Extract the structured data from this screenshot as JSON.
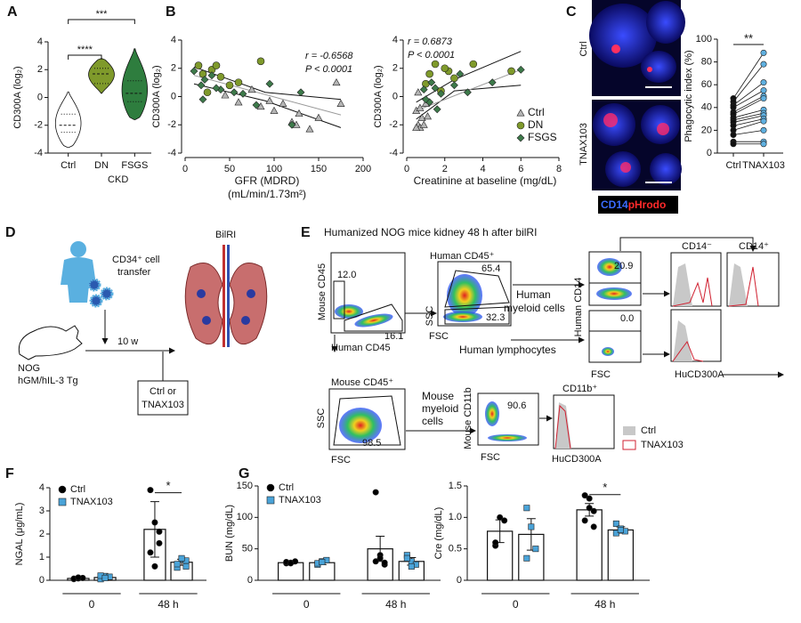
{
  "figure": {
    "panel_labels": [
      "A",
      "B",
      "C",
      "D",
      "E",
      "F",
      "G"
    ],
    "C": {
      "row_labels": [
        "Ctrl",
        "TNAX103"
      ],
      "stain": [
        "CD14",
        "pHrodo"
      ]
    },
    "D": {
      "cell_transfer": [
        "CD34⁺ cell",
        "transfer"
      ],
      "duration": "10 w",
      "mouse": [
        "NOG",
        "hGM/hIL-3 Tg"
      ],
      "procedure": "BilRI",
      "treatment": [
        "Ctrl or",
        "TNAX103"
      ]
    },
    "E": {
      "title": "Humanized NOG mice kidney 48 h after bilRI",
      "plot1": {
        "ylabel": "Mouse CD45",
        "xlabel": "Human CD45",
        "gates": [
          "12.0",
          "16.1"
        ]
      },
      "plot2": {
        "title": "Human CD45⁺",
        "ylabel": "SSC",
        "xlabel": "FSC",
        "gates": [
          "65.4",
          "32.3"
        ]
      },
      "myeloid": [
        "Human",
        "myeloid cells"
      ],
      "lymphocytes": "Human lymphocytes",
      "plot3": {
        "ylabel": "Human CD14",
        "xlabel": "FSC",
        "gates": [
          "20.9",
          "0.0"
        ]
      },
      "histograms": {
        "headers": [
          "CD14⁻",
          "CD14⁺"
        ],
        "xlabel": "HuCD300A"
      },
      "plot4": {
        "title": "Mouse CD45⁺",
        "ylabel": "SSC",
        "xlabel": "FSC",
        "gate": "98.5"
      },
      "mouse_myeloid": [
        "Mouse",
        "myeloid",
        "cells"
      ],
      "plot5": {
        "ylabel": "Mouse CD11b",
        "xlabel": "FSC",
        "gate": "90.6"
      },
      "histogram2": {
        "title": "CD11b⁺",
        "xlabel": "HuCD300A"
      },
      "legend": [
        "Ctrl",
        "TNAX103"
      ]
    }
  },
  "chart_data": [
    {
      "type": "violin",
      "ylabel": "CD300A (log₂)",
      "categories": [
        "Ctrl",
        "DN",
        "FSGS"
      ],
      "group_label": "CKD",
      "colors": [
        "#ffffff",
        "#7f9a2b",
        "#2e7d3e"
      ],
      "stats": [
        {
          "min": -3.6,
          "q1": -2.5,
          "median": -2,
          "q3": -1.2,
          "max": 0.4
        },
        {
          "min": 0.3,
          "q1": 1,
          "median": 1.7,
          "q3": 2.1,
          "max": 2.8
        },
        {
          "min": -1.6,
          "q1": -0.3,
          "median": 0.3,
          "q3": 1.2,
          "max": 3.5
        }
      ],
      "ylim": [
        -4,
        4
      ],
      "yticks": [
        -4,
        -2,
        0,
        2,
        4
      ],
      "significance": [
        {
          "from": 0,
          "to": 1,
          "label": "****"
        },
        {
          "from": 0,
          "to": 2,
          "label": "***"
        }
      ]
    },
    {
      "type": "scatter",
      "xlabel": [
        "GFR (MDRD)",
        "(mL/min/1.73m²)"
      ],
      "ylabel": "CD300A (log₂)",
      "annotation": [
        "r = -0.6568",
        "P < 0.0001"
      ],
      "series": [
        {
          "name": "Ctrl",
          "marker": "triangle",
          "color": "#b5b5b5",
          "x": [
            100,
            120,
            125,
            128,
            140,
            170,
            150,
            95,
            110,
            85,
            75,
            60,
            45,
            175
          ],
          "y": [
            -1,
            -1.8,
            -2,
            -1.2,
            -2.3,
            1,
            -1.5,
            -0.3,
            -0.5,
            -0.7,
            0.5,
            -0.4,
            0.1,
            -0.5
          ]
        },
        {
          "name": "DN",
          "marker": "circle",
          "color": "#7f9a2b",
          "x": [
            15,
            20,
            30,
            40,
            60,
            85,
            25,
            50,
            35
          ],
          "y": [
            2.2,
            1.6,
            1.9,
            1.4,
            1.0,
            2.5,
            0.3,
            0.8,
            2.2
          ]
        },
        {
          "name": "FSGS",
          "marker": "diamond",
          "color": "#3d7a4a",
          "x": [
            10,
            18,
            22,
            30,
            40,
            55,
            65,
            80,
            95,
            35,
            130,
            20,
            120
          ],
          "y": [
            1.8,
            0.8,
            1.2,
            1.5,
            0.5,
            0.3,
            0.2,
            -0.6,
            0.9,
            0.6,
            0.3,
            -0.2,
            -2
          ]
        }
      ],
      "fit": {
        "x": [
          10,
          175
        ],
        "y": [
          1.5,
          -1.3
        ]
      },
      "ci_upper": {
        "x": [
          10,
          90,
          175
        ],
        "y": [
          2.1,
          0.3,
          -0.2
        ]
      },
      "ci_lower": {
        "x": [
          10,
          90,
          175
        ],
        "y": [
          0.9,
          -0.3,
          -2.2
        ]
      },
      "xlim": [
        0,
        200
      ],
      "xticks": [
        0,
        50,
        100,
        150,
        200
      ],
      "ylim": [
        -4,
        4
      ],
      "yticks": [
        -4,
        -2,
        0,
        2,
        4
      ],
      "legend": "none"
    },
    {
      "type": "scatter",
      "xlabel": [
        "Creatinine at baseline (mg/dL)"
      ],
      "ylabel": "CD300A (log₂)",
      "annotation": [
        "r = 0.6873",
        "P < 0.0001"
      ],
      "series": [
        {
          "name": "Ctrl",
          "marker": "triangle",
          "color": "#b5b5b5",
          "x": [
            0.5,
            0.6,
            0.7,
            0.8,
            0.9,
            1.0,
            0.6,
            0.7,
            1.1,
            0.5
          ],
          "y": [
            -1,
            -2,
            -2.2,
            -1.5,
            -2,
            -0.5,
            0.3,
            -0.8,
            -1.4,
            -2.2
          ]
        },
        {
          "name": "DN",
          "marker": "circle",
          "color": "#7f9a2b",
          "x": [
            1.2,
            1.5,
            2.2,
            2.5,
            3.5,
            5.5,
            1.8,
            1.0,
            2.0
          ],
          "y": [
            1.6,
            2.3,
            1.8,
            1.3,
            2.3,
            1.8,
            0.4,
            0.9,
            2.0
          ]
        },
        {
          "name": "FSGS",
          "marker": "diamond",
          "color": "#3d7a4a",
          "x": [
            1.5,
            1.2,
            1.8,
            2.5,
            3.2,
            4.5,
            0.9,
            1.3,
            2.8,
            1.0,
            6.0,
            1.6
          ],
          "y": [
            0.6,
            -0.4,
            0.2,
            0.8,
            0.3,
            1.0,
            0.5,
            1.0,
            1.6,
            -0.2,
            1.9,
            -0.9
          ]
        }
      ],
      "fit": {
        "x": [
          0.5,
          6
        ],
        "y": [
          -1.0,
          1.9
        ]
      },
      "ci_upper": {
        "x": [
          0.5,
          2.5,
          6
        ],
        "y": [
          -0.4,
          1.2,
          3.2
        ]
      },
      "ci_lower": {
        "x": [
          0.5,
          2.5,
          6
        ],
        "y": [
          -1.6,
          0.4,
          0.8
        ]
      },
      "xlim": [
        0,
        8
      ],
      "xticks": [
        0,
        2,
        4,
        6,
        8
      ],
      "ylim": [
        -4,
        4
      ],
      "yticks": [
        -4,
        -2,
        0,
        2,
        4
      ],
      "legend": "right"
    },
    {
      "type": "paired",
      "ylabel": "Phagocytic index (%)",
      "categories": [
        "Ctrl",
        "TNAX103"
      ],
      "colors": [
        "#111111",
        "#5fb0e0"
      ],
      "pairs": [
        [
          48,
          88
        ],
        [
          45,
          78
        ],
        [
          42,
          62
        ],
        [
          40,
          55
        ],
        [
          36,
          50
        ],
        [
          34,
          48
        ],
        [
          31,
          38
        ],
        [
          29,
          35
        ],
        [
          27,
          33
        ],
        [
          24,
          30
        ],
        [
          20,
          28
        ],
        [
          16,
          20
        ],
        [
          10,
          10
        ],
        [
          8,
          8
        ]
      ],
      "ylim": [
        0,
        100
      ],
      "yticks": [
        0,
        20,
        40,
        60,
        80,
        100
      ],
      "significance": "**"
    },
    {
      "type": "bar",
      "ylabel": "NGAL (μg/mL)",
      "categories": [
        "0",
        "48 h"
      ],
      "series": [
        {
          "name": "Ctrl",
          "marker": "circle",
          "color": "#000000",
          "values": [
            0.08,
            2.2
          ],
          "errors": [
            0.02,
            1.2
          ],
          "points": [
            [
              0.05,
              0.08,
              0.1,
              0.07,
              0.12
            ],
            [
              3.9,
              2.5,
              1.6,
              1.2,
              0.6,
              2.1
            ]
          ]
        },
        {
          "name": "TNAX103",
          "marker": "square",
          "color": "#4aa3d8",
          "values": [
            0.12,
            0.78
          ],
          "errors": [
            0.04,
            0.13
          ],
          "points": [
            [
              0.05,
              0.18,
              0.15,
              0.2,
              0.1
            ],
            [
              0.55,
              0.9,
              0.85,
              0.7,
              0.95,
              0.6
            ]
          ]
        }
      ],
      "ylim": [
        0,
        4
      ],
      "yticks": [
        0,
        1,
        2,
        3,
        4
      ],
      "significance": [
        {
          "category": 1,
          "label": "*"
        }
      ],
      "legend": "upper left"
    },
    {
      "type": "bar",
      "ylabel": "BUN (mg/dL)",
      "categories": [
        "0",
        "48 h"
      ],
      "series": [
        {
          "name": "Ctrl",
          "marker": "circle",
          "color": "#000000",
          "values": [
            28,
            50
          ],
          "errors": [
            2,
            20
          ],
          "points": [
            [
              27,
              28,
              30,
              29,
              27
            ],
            [
              140,
              40,
              25,
              30,
              35,
              28
            ]
          ]
        },
        {
          "name": "TNAX103",
          "marker": "square",
          "color": "#4aa3d8",
          "values": [
            28,
            30
          ],
          "errors": [
            3,
            6
          ],
          "points": [
            [
              25,
              30,
              32,
              27,
              29
            ],
            [
              40,
              30,
              25,
              35,
              22
            ]
          ]
        }
      ],
      "ylim": [
        0,
        150
      ],
      "yticks": [
        0,
        50,
        100,
        150
      ],
      "significance": [],
      "legend": "upper left"
    },
    {
      "type": "bar",
      "ylabel": "Cre (mg/dL)",
      "categories": [
        "0",
        "48 h"
      ],
      "series": [
        {
          "name": "Ctrl",
          "marker": "circle",
          "color": "#000000",
          "values": [
            0.78,
            1.12
          ],
          "errors": [
            0.18,
            0.1
          ],
          "points": [
            [
              0.55,
              1.0,
              0.95,
              0.6
            ],
            [
              1.35,
              1.3,
              1.1,
              0.95,
              1.15,
              0.85
            ]
          ]
        },
        {
          "name": "TNAX103",
          "marker": "square",
          "color": "#4aa3d8",
          "values": [
            0.73,
            0.8
          ],
          "errors": [
            0.25,
            0.05
          ],
          "points": [
            [
              1.15,
              0.85,
              0.5,
              0.35
            ],
            [
              0.9,
              0.82,
              0.78,
              0.75,
              0.8
            ]
          ]
        }
      ],
      "ylim": [
        0,
        1.5
      ],
      "yticks": [
        0,
        0.5,
        {
          "value": 1,
          "label": "1.0"
        },
        1.5
      ],
      "significance": [
        {
          "category": 1,
          "label": "*"
        }
      ],
      "legend": "none"
    }
  ]
}
